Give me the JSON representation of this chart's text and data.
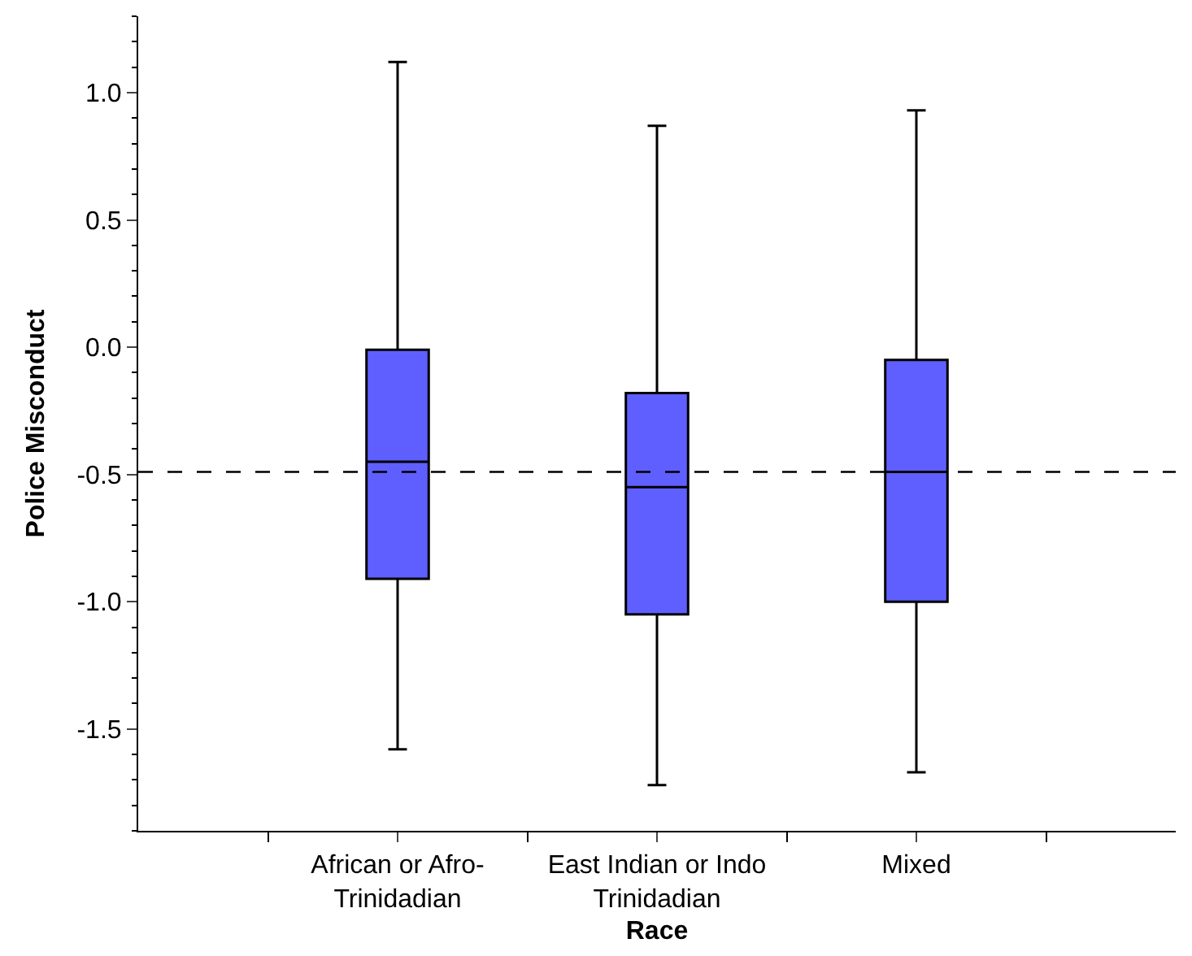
{
  "chart_data": {
    "type": "box",
    "xlabel": "Race",
    "ylabel": "Police Misconduct",
    "categories": [
      "African or Afro-\nTrinidadian",
      "East Indian or Indo\nTrinidadian",
      "Mixed"
    ],
    "boxes": [
      {
        "low": -1.58,
        "q1": -0.91,
        "median": -0.45,
        "q3": -0.01,
        "high": 1.12
      },
      {
        "low": -1.72,
        "q1": -1.05,
        "median": -0.55,
        "q3": -0.18,
        "high": 0.87
      },
      {
        "low": -1.67,
        "q1": -1.0,
        "median": -0.49,
        "q3": -0.05,
        "high": 0.93
      }
    ],
    "color": "#5f5fff",
    "ylim": [
      -1.9,
      1.3
    ],
    "yticks": [
      {
        "value": 1,
        "label": "1.0"
      },
      {
        "value": 0.5,
        "label": "0.5"
      },
      {
        "value": 0,
        "label": "0.0"
      },
      {
        "value": -0.5,
        "label": "-0.5"
      },
      {
        "value": -1,
        "label": "-1.0"
      },
      {
        "value": -1.5,
        "label": "-1.5"
      }
    ],
    "ref_lines": [
      {
        "axis": "y",
        "value": -0.49,
        "line_style": "dashed",
        "color": "#000000"
      }
    ],
    "legend": false
  }
}
